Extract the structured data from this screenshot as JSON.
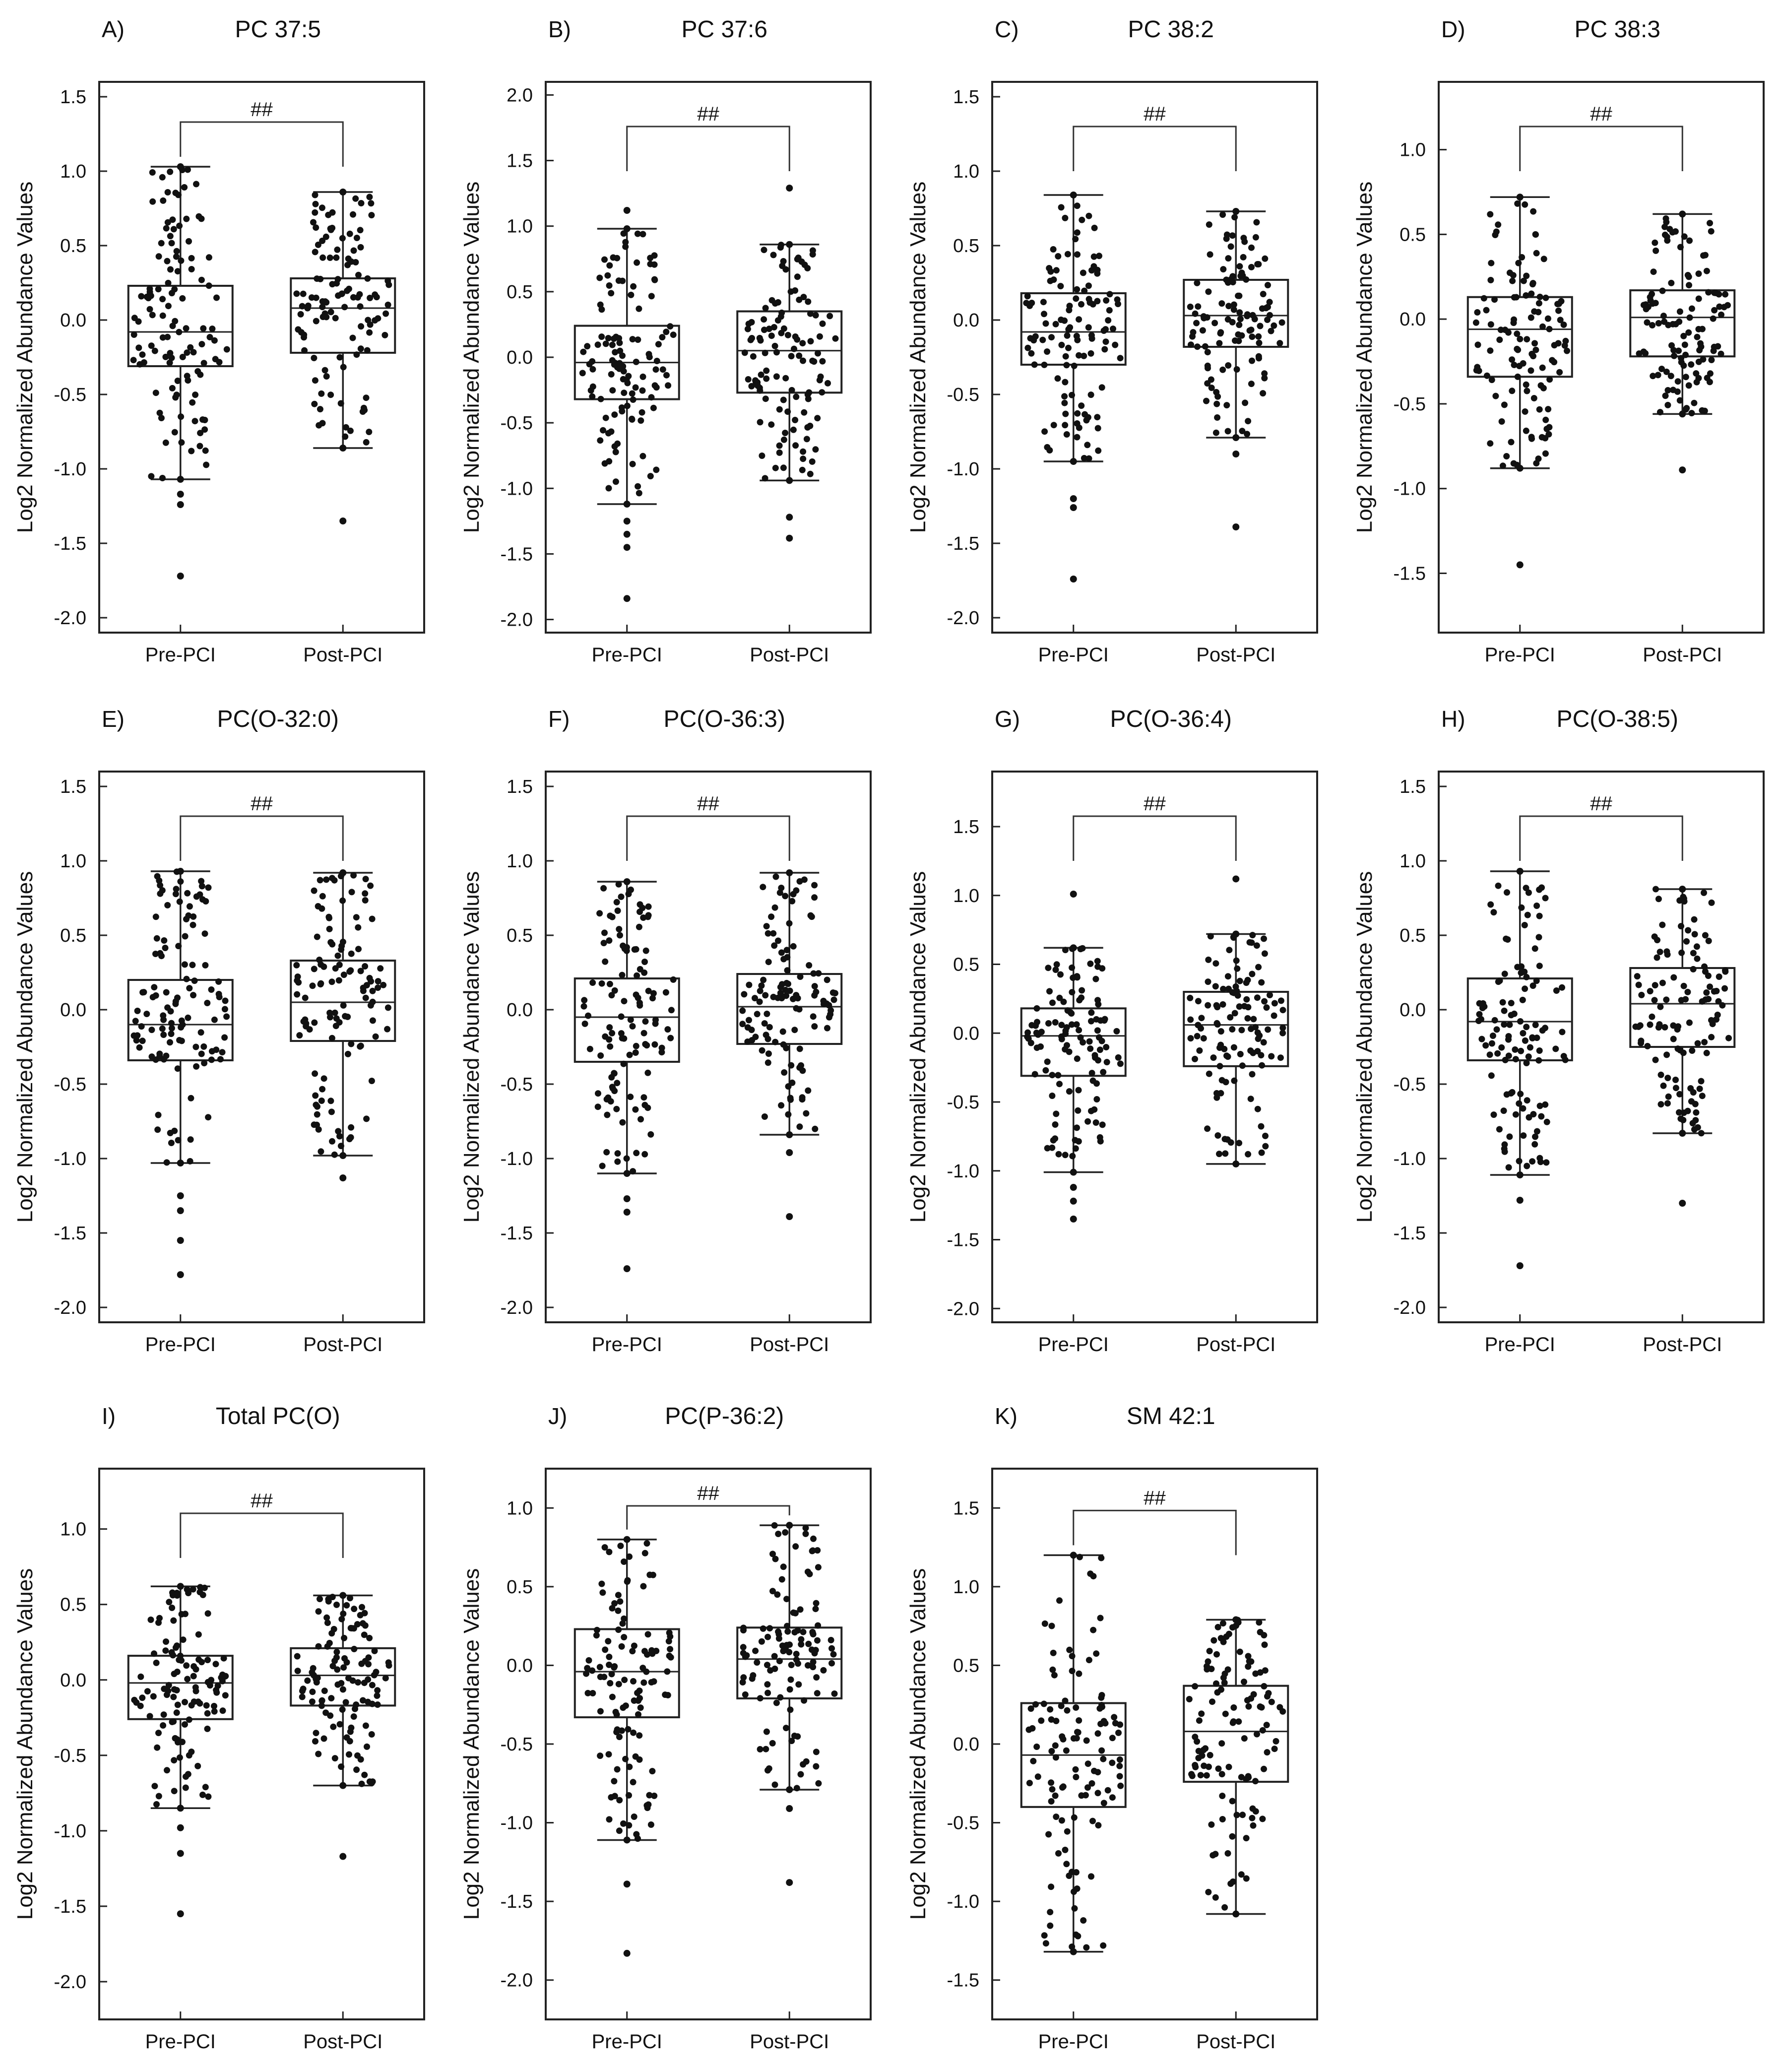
{
  "figure": {
    "y_axis_title": "Log2 Normalized Abundance Values",
    "categories": [
      "Pre-PCI",
      "Post-PCI"
    ],
    "significance_marker": "##"
  },
  "chart_data": [
    {
      "type": "boxplot",
      "letter": "A)",
      "title": "PC 37:5",
      "ylabel": "Log2 Normalized Abundance Values",
      "categories": [
        "Pre-PCI",
        "Post-PCI"
      ],
      "yticks": [
        "-2.0",
        "-1.5",
        "-1.0",
        "-0.5",
        "0.0",
        "0.5",
        "1.0",
        "1.5"
      ],
      "ylim": [
        -2.1,
        1.6
      ],
      "significance": "##",
      "series": [
        {
          "name": "Pre-PCI",
          "whisker_low": -1.07,
          "q1": -0.31,
          "median": -0.08,
          "q3": 0.23,
          "whisker_high": 1.03,
          "outliers": [
            -1.17,
            -1.24,
            -1.72
          ]
        },
        {
          "name": "Post-PCI",
          "whisker_low": -0.86,
          "q1": -0.22,
          "median": 0.08,
          "q3": 0.28,
          "whisker_high": 0.86,
          "outliers": [
            -1.35
          ]
        }
      ]
    },
    {
      "type": "boxplot",
      "letter": "B)",
      "title": "PC 37:6",
      "ylabel": "Log2 Normalized Abundance Values",
      "categories": [
        "Pre-PCI",
        "Post-PCI"
      ],
      "yticks": [
        "-2.0",
        "-1.5",
        "-1.0",
        "-0.5",
        "0.0",
        "0.5",
        "1.0",
        "1.5",
        "2.0"
      ],
      "ylim": [
        -2.1,
        2.1
      ],
      "significance": "##",
      "series": [
        {
          "name": "Pre-PCI",
          "whisker_low": -1.12,
          "q1": -0.32,
          "median": -0.04,
          "q3": 0.24,
          "whisker_high": 0.98,
          "outliers": [
            1.12,
            -1.25,
            -1.35,
            -1.45,
            -1.84
          ]
        },
        {
          "name": "Post-PCI",
          "whisker_low": -0.94,
          "q1": -0.27,
          "median": 0.05,
          "q3": 0.35,
          "whisker_high": 0.86,
          "outliers": [
            1.29,
            -1.22,
            -1.38
          ]
        }
      ]
    },
    {
      "type": "boxplot",
      "letter": "C)",
      "title": "PC 38:2",
      "ylabel": "Log2 Normalized Abundance Values",
      "categories": [
        "Pre-PCI",
        "Post-PCI"
      ],
      "yticks": [
        "-2.0",
        "-1.5",
        "-1.0",
        "-0.5",
        "0.0",
        "0.5",
        "1.0",
        "1.5"
      ],
      "ylim": [
        -2.1,
        1.6
      ],
      "significance": "##",
      "series": [
        {
          "name": "Pre-PCI",
          "whisker_low": -0.95,
          "q1": -0.3,
          "median": -0.08,
          "q3": 0.18,
          "whisker_high": 0.84,
          "outliers": [
            -1.2,
            -1.26,
            -1.74
          ]
        },
        {
          "name": "Post-PCI",
          "whisker_low": -0.79,
          "q1": -0.18,
          "median": 0.03,
          "q3": 0.27,
          "whisker_high": 0.73,
          "outliers": [
            -0.9,
            -1.39
          ]
        }
      ]
    },
    {
      "type": "boxplot",
      "letter": "D)",
      "title": "PC 38:3",
      "ylabel": "Log2 Normalized Abundance Values",
      "categories": [
        "Pre-PCI",
        "Post-PCI"
      ],
      "yticks": [
        "-1.5",
        "-1.0",
        "-0.5",
        "0.0",
        "0.5",
        "1.0"
      ],
      "ylim": [
        -1.85,
        1.4
      ],
      "significance": "##",
      "series": [
        {
          "name": "Pre-PCI",
          "whisker_low": -0.88,
          "q1": -0.34,
          "median": -0.06,
          "q3": 0.13,
          "whisker_high": 0.72,
          "outliers": [
            -1.45
          ]
        },
        {
          "name": "Post-PCI",
          "whisker_low": -0.56,
          "q1": -0.22,
          "median": 0.01,
          "q3": 0.17,
          "whisker_high": 0.62,
          "outliers": [
            -0.89
          ]
        }
      ]
    },
    {
      "type": "boxplot",
      "letter": "E)",
      "title": "PC(O-32:0)",
      "ylabel": "Log2 Normalized Abundance Values",
      "categories": [
        "Pre-PCI",
        "Post-PCI"
      ],
      "yticks": [
        "-2.0",
        "-1.5",
        "-1.0",
        "-0.5",
        "0.0",
        "0.5",
        "1.0",
        "1.5"
      ],
      "ylim": [
        -2.1,
        1.6
      ],
      "significance": "##",
      "series": [
        {
          "name": "Pre-PCI",
          "whisker_low": -1.03,
          "q1": -0.34,
          "median": -0.1,
          "q3": 0.2,
          "whisker_high": 0.93,
          "outliers": [
            -1.25,
            -1.35,
            -1.55,
            -1.78
          ]
        },
        {
          "name": "Post-PCI",
          "whisker_low": -0.98,
          "q1": -0.21,
          "median": 0.05,
          "q3": 0.33,
          "whisker_high": 0.92,
          "outliers": [
            -1.13
          ]
        }
      ]
    },
    {
      "type": "boxplot",
      "letter": "F)",
      "title": "PC(O-36:3)",
      "ylabel": "Log2 Normalized Abundance Values",
      "categories": [
        "Pre-PCI",
        "Post-PCI"
      ],
      "yticks": [
        "-2.0",
        "-1.5",
        "-1.0",
        "-0.5",
        "0.0",
        "0.5",
        "1.0",
        "1.5"
      ],
      "ylim": [
        -2.1,
        1.6
      ],
      "significance": "##",
      "series": [
        {
          "name": "Pre-PCI",
          "whisker_low": -1.1,
          "q1": -0.35,
          "median": -0.05,
          "q3": 0.21,
          "whisker_high": 0.86,
          "outliers": [
            -1.27,
            -1.36,
            -1.74
          ]
        },
        {
          "name": "Post-PCI",
          "whisker_low": -0.84,
          "q1": -0.23,
          "median": 0.02,
          "q3": 0.24,
          "whisker_high": 0.92,
          "outliers": [
            -0.96,
            -1.39
          ]
        }
      ]
    },
    {
      "type": "boxplot",
      "letter": "G)",
      "title": "PC(O-36:4)",
      "ylabel": "Log2 Normalized Abundance Values",
      "categories": [
        "Pre-PCI",
        "Post-PCI"
      ],
      "yticks": [
        "-2.0",
        "-1.5",
        "-1.0",
        "-0.5",
        "0.0",
        "0.5",
        "1.0",
        "1.5"
      ],
      "ylim": [
        -2.1,
        1.9
      ],
      "significance": "##",
      "series": [
        {
          "name": "Pre-PCI",
          "whisker_low": -1.01,
          "q1": -0.31,
          "median": -0.02,
          "q3": 0.18,
          "whisker_high": 0.62,
          "outliers": [
            1.01,
            -1.12,
            -1.22,
            -1.35
          ]
        },
        {
          "name": "Post-PCI",
          "whisker_low": -0.95,
          "q1": -0.24,
          "median": 0.06,
          "q3": 0.3,
          "whisker_high": 0.72,
          "outliers": [
            1.12
          ]
        }
      ]
    },
    {
      "type": "boxplot",
      "letter": "H)",
      "title": "PC(O-38:5)",
      "ylabel": "Log2 Normalized Abundance Values",
      "categories": [
        "Pre-PCI",
        "Post-PCI"
      ],
      "yticks": [
        "-2.0",
        "-1.5",
        "-1.0",
        "-0.5",
        "0.0",
        "0.5",
        "1.0",
        "1.5"
      ],
      "ylim": [
        -2.1,
        1.6
      ],
      "significance": "##",
      "series": [
        {
          "name": "Pre-PCI",
          "whisker_low": -1.11,
          "q1": -0.34,
          "median": -0.08,
          "q3": 0.21,
          "whisker_high": 0.93,
          "outliers": [
            -1.28,
            -1.72
          ]
        },
        {
          "name": "Post-PCI",
          "whisker_low": -0.83,
          "q1": -0.25,
          "median": 0.04,
          "q3": 0.28,
          "whisker_high": 0.81,
          "outliers": [
            -1.3
          ]
        }
      ]
    },
    {
      "type": "boxplot",
      "letter": "I)",
      "title": "Total PC(O)",
      "ylabel": "Log2 Normalized Abundance Values",
      "categories": [
        "Pre-PCI",
        "Post-PCI"
      ],
      "yticks": [
        "-2.0",
        "-1.5",
        "-1.0",
        "-0.5",
        "0.0",
        "0.5",
        "1.0"
      ],
      "ylim": [
        -2.25,
        1.4
      ],
      "significance": "##",
      "series": [
        {
          "name": "Pre-PCI",
          "whisker_low": -0.85,
          "q1": -0.26,
          "median": -0.02,
          "q3": 0.16,
          "whisker_high": 0.62,
          "outliers": [
            -0.98,
            -1.15,
            -1.55
          ]
        },
        {
          "name": "Post-PCI",
          "whisker_low": -0.7,
          "q1": -0.17,
          "median": 0.03,
          "q3": 0.21,
          "whisker_high": 0.56,
          "outliers": [
            -1.17
          ]
        }
      ]
    },
    {
      "type": "boxplot",
      "letter": "J)",
      "title": "PC(P-36:2)",
      "ylabel": "Log2 Normalized Abundance Values",
      "categories": [
        "Pre-PCI",
        "Post-PCI"
      ],
      "yticks": [
        "-2.0",
        "-1.5",
        "-1.0",
        "-0.5",
        "0.0",
        "0.5",
        "1.0"
      ],
      "ylim": [
        -2.25,
        1.25
      ],
      "significance": "##",
      "series": [
        {
          "name": "Pre-PCI",
          "whisker_low": -1.11,
          "q1": -0.33,
          "median": -0.04,
          "q3": 0.23,
          "whisker_high": 0.8,
          "outliers": [
            -1.39,
            -1.83
          ]
        },
        {
          "name": "Post-PCI",
          "whisker_low": -0.79,
          "q1": -0.21,
          "median": 0.04,
          "q3": 0.24,
          "whisker_high": 0.89,
          "outliers": [
            -0.91,
            -1.38
          ]
        }
      ]
    },
    {
      "type": "boxplot",
      "letter": "K)",
      "title": "SM 42:1",
      "ylabel": "Log2 Normalized Abundance Values",
      "categories": [
        "Pre-PCI",
        "Post-PCI"
      ],
      "yticks": [
        "-1.5",
        "-1.0",
        "-0.5",
        "0.0",
        "0.5",
        "1.0",
        "1.5"
      ],
      "ylim": [
        -1.75,
        1.75
      ],
      "significance": "##",
      "series": [
        {
          "name": "Pre-PCI",
          "whisker_low": -1.32,
          "q1": -0.4,
          "median": -0.07,
          "q3": 0.26,
          "whisker_high": 1.2,
          "outliers": []
        },
        {
          "name": "Post-PCI",
          "whisker_low": -1.08,
          "q1": -0.24,
          "median": 0.08,
          "q3": 0.37,
          "whisker_high": 0.79,
          "outliers": []
        }
      ]
    }
  ]
}
